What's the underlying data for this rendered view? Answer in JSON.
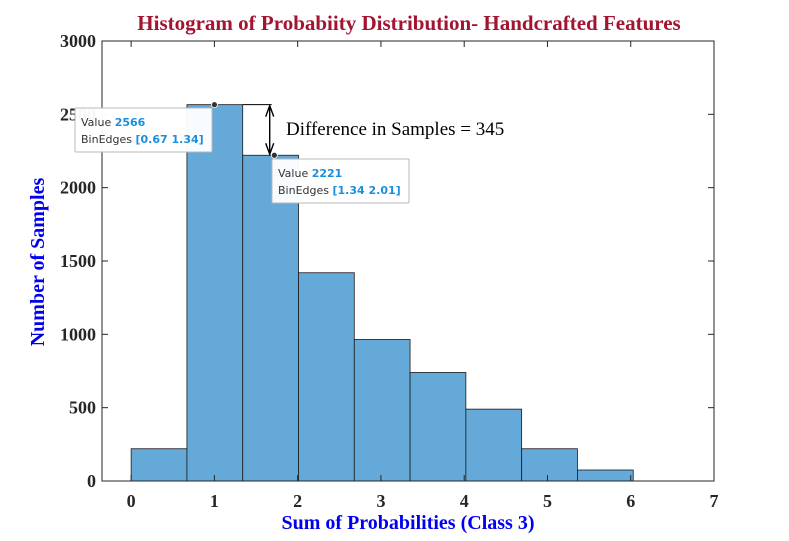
{
  "chart_data": {
    "type": "bar",
    "title": "Histogram of Probabiity Distribution- Handcrafted Features",
    "xlabel": "Sum of Probabilities (Class 3)",
    "ylabel": "Number of Samples",
    "xlim": [
      -0.35,
      7
    ],
    "ylim": [
      0,
      3000
    ],
    "xticks": [
      0,
      1,
      2,
      3,
      4,
      5,
      6,
      7
    ],
    "yticks": [
      0,
      500,
      1000,
      1500,
      2000,
      2500,
      3000
    ],
    "bin_edges": [
      0,
      0.67,
      1.34,
      2.01,
      2.68,
      3.35,
      4.02,
      4.69,
      5.36,
      6.03
    ],
    "values": [
      220,
      2566,
      2221,
      1420,
      965,
      740,
      490,
      220,
      75
    ],
    "bar_color": "#65a9d8",
    "grid": false,
    "datatips": [
      {
        "value_label": "Value",
        "value": "2566",
        "edges_label": "BinEdges",
        "edges": "[0.67 1.34]",
        "bin": 1
      },
      {
        "value_label": "Value",
        "value": "2221",
        "edges_label": "BinEdges",
        "edges": "[1.34 2.01]",
        "bin": 2
      }
    ],
    "annotation": "Difference in Samples = 345"
  }
}
